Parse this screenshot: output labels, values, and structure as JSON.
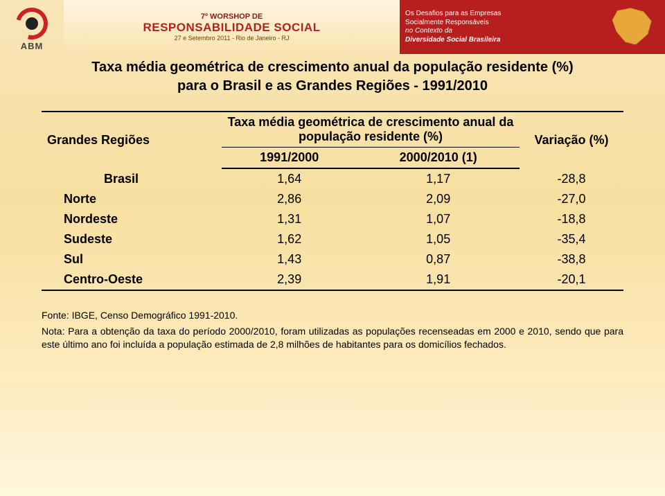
{
  "header": {
    "logo_label": "ABM",
    "banner_line1": "7º WORSHOP DE",
    "banner_line2": "RESPONSABILIDADE SOCIAL",
    "banner_line3": "27 e Setembro 2011 - Rio de Janeiro - RJ",
    "banner_right_l1": "Os Desafios para as Empresas",
    "banner_right_l2": "Socialmente Responsáveis",
    "banner_right_l3": "no Contexto da",
    "banner_right_l4": "Diversidade Social Brasileira"
  },
  "title": {
    "line1": "Taxa média geométrica de crescimento anual da população residente (%)",
    "line2": "para o Brasil e as Grandes Regiões - 1991/2010"
  },
  "table": {
    "col_region": "Grandes Regiões",
    "col_span": "Taxa média geométrica de crescimento anual da população residente (%)",
    "col_variation": "Variação (%)",
    "sub_1991": "1991/2000",
    "sub_2000": "2000/2010 (1)",
    "rows": [
      {
        "region": "Brasil",
        "c1": "1,64",
        "c2": "1,17",
        "var": "-28,8",
        "brasil": true
      },
      {
        "region": "Norte",
        "c1": "2,86",
        "c2": "2,09",
        "var": "-27,0"
      },
      {
        "region": "Nordeste",
        "c1": "1,31",
        "c2": "1,07",
        "var": "-18,8"
      },
      {
        "region": "Sudeste",
        "c1": "1,62",
        "c2": "1,05",
        "var": "-35,4"
      },
      {
        "region": "Sul",
        "c1": "1,43",
        "c2": "0,87",
        "var": "-38,8"
      },
      {
        "region": "Centro-Oeste",
        "c1": "2,39",
        "c2": "1,91",
        "var": "-20,1"
      }
    ]
  },
  "footnote": {
    "source": "Fonte: IBGE, Censo Demográfico 1991-2010.",
    "note": "Nota: Para a obtenção da taxa do período 2000/2010, foram utilizadas as populações recenseadas em 2000 e 2010, sendo que para este último ano foi incluída a população estimada de 2,8 milhões de habitantes para os domicílios fechados."
  },
  "colors": {
    "accent_red": "#b71f1f",
    "rule": "#000000"
  }
}
